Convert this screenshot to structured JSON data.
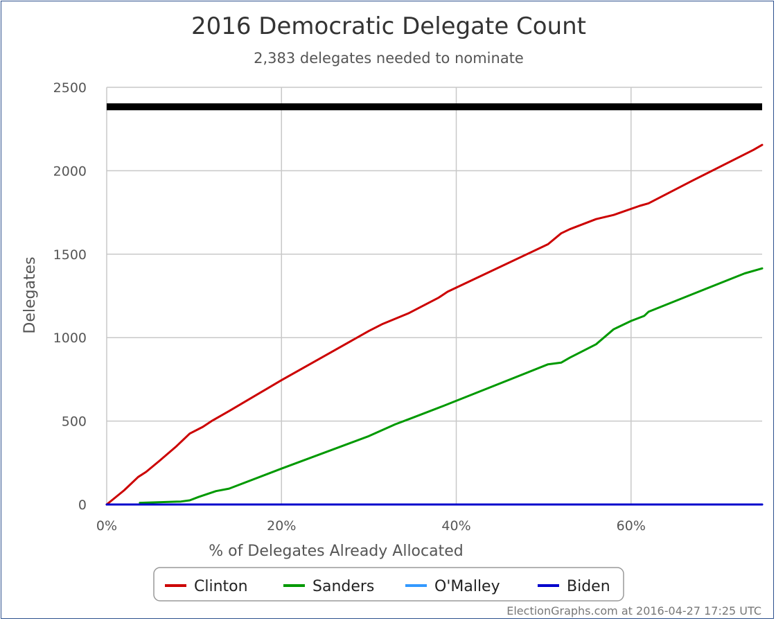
{
  "chart_data": {
    "type": "line",
    "title": "2016 Democratic Delegate Count",
    "subtitle": "2,383 delegates needed to nominate",
    "xlabel": "% of Delegates Already Allocated",
    "ylabel": "Delegates",
    "xlim": [
      0,
      75
    ],
    "ylim": [
      0,
      2500
    ],
    "x_ticks": [
      "0%",
      "20%",
      "40%",
      "60%"
    ],
    "y_ticks": [
      "0",
      "500",
      "1000",
      "1500",
      "2000",
      "2500"
    ],
    "x_tick_values": [
      0,
      20,
      40,
      60
    ],
    "y_tick_values": [
      0,
      500,
      1000,
      1500,
      2000,
      2500
    ],
    "grid": true,
    "legend_position": "bottom-center",
    "threshold": {
      "value": 2383,
      "color": "#000000"
    },
    "series": [
      {
        "name": "Clinton",
        "color": "#cc0000",
        "points": [
          [
            0,
            0
          ],
          [
            2,
            85
          ],
          [
            3.6,
            165
          ],
          [
            4.5,
            195
          ],
          [
            6,
            260
          ],
          [
            8,
            350
          ],
          [
            9.5,
            425
          ],
          [
            11,
            465
          ],
          [
            12,
            500
          ],
          [
            14,
            560
          ],
          [
            20,
            745
          ],
          [
            30,
            1040
          ],
          [
            31.5,
            1080
          ],
          [
            34.5,
            1145
          ],
          [
            38,
            1240
          ],
          [
            39,
            1275
          ],
          [
            50.5,
            1560
          ],
          [
            52,
            1625
          ],
          [
            53,
            1650
          ],
          [
            56,
            1710
          ],
          [
            58,
            1735
          ],
          [
            61,
            1790
          ],
          [
            62,
            1805
          ],
          [
            67,
            1940
          ],
          [
            74,
            2125
          ],
          [
            75,
            2155
          ]
        ]
      },
      {
        "name": "Sanders",
        "color": "#009900",
        "points": [
          [
            3.8,
            10
          ],
          [
            5,
            12
          ],
          [
            8.5,
            18
          ],
          [
            9.5,
            25
          ],
          [
            10.5,
            45
          ],
          [
            12.5,
            80
          ],
          [
            14,
            95
          ],
          [
            20,
            215
          ],
          [
            30,
            410
          ],
          [
            33,
            480
          ],
          [
            35,
            520
          ],
          [
            38.5,
            590
          ],
          [
            50.5,
            840
          ],
          [
            52,
            850
          ],
          [
            53,
            880
          ],
          [
            56,
            960
          ],
          [
            58,
            1050
          ],
          [
            60,
            1100
          ],
          [
            61.5,
            1130
          ],
          [
            62,
            1155
          ],
          [
            67,
            1260
          ],
          [
            73,
            1385
          ],
          [
            75,
            1415
          ]
        ]
      },
      {
        "name": "O'Malley",
        "color": "#3399ff",
        "points": [
          [
            3.8,
            0
          ],
          [
            75,
            0
          ]
        ]
      },
      {
        "name": "Biden",
        "color": "#0000cc",
        "points": [
          [
            0,
            0
          ],
          [
            75,
            0
          ]
        ]
      }
    ]
  },
  "footer": {
    "credit": "ElectionGraphs.com at 2016-04-27 17:25 UTC"
  }
}
